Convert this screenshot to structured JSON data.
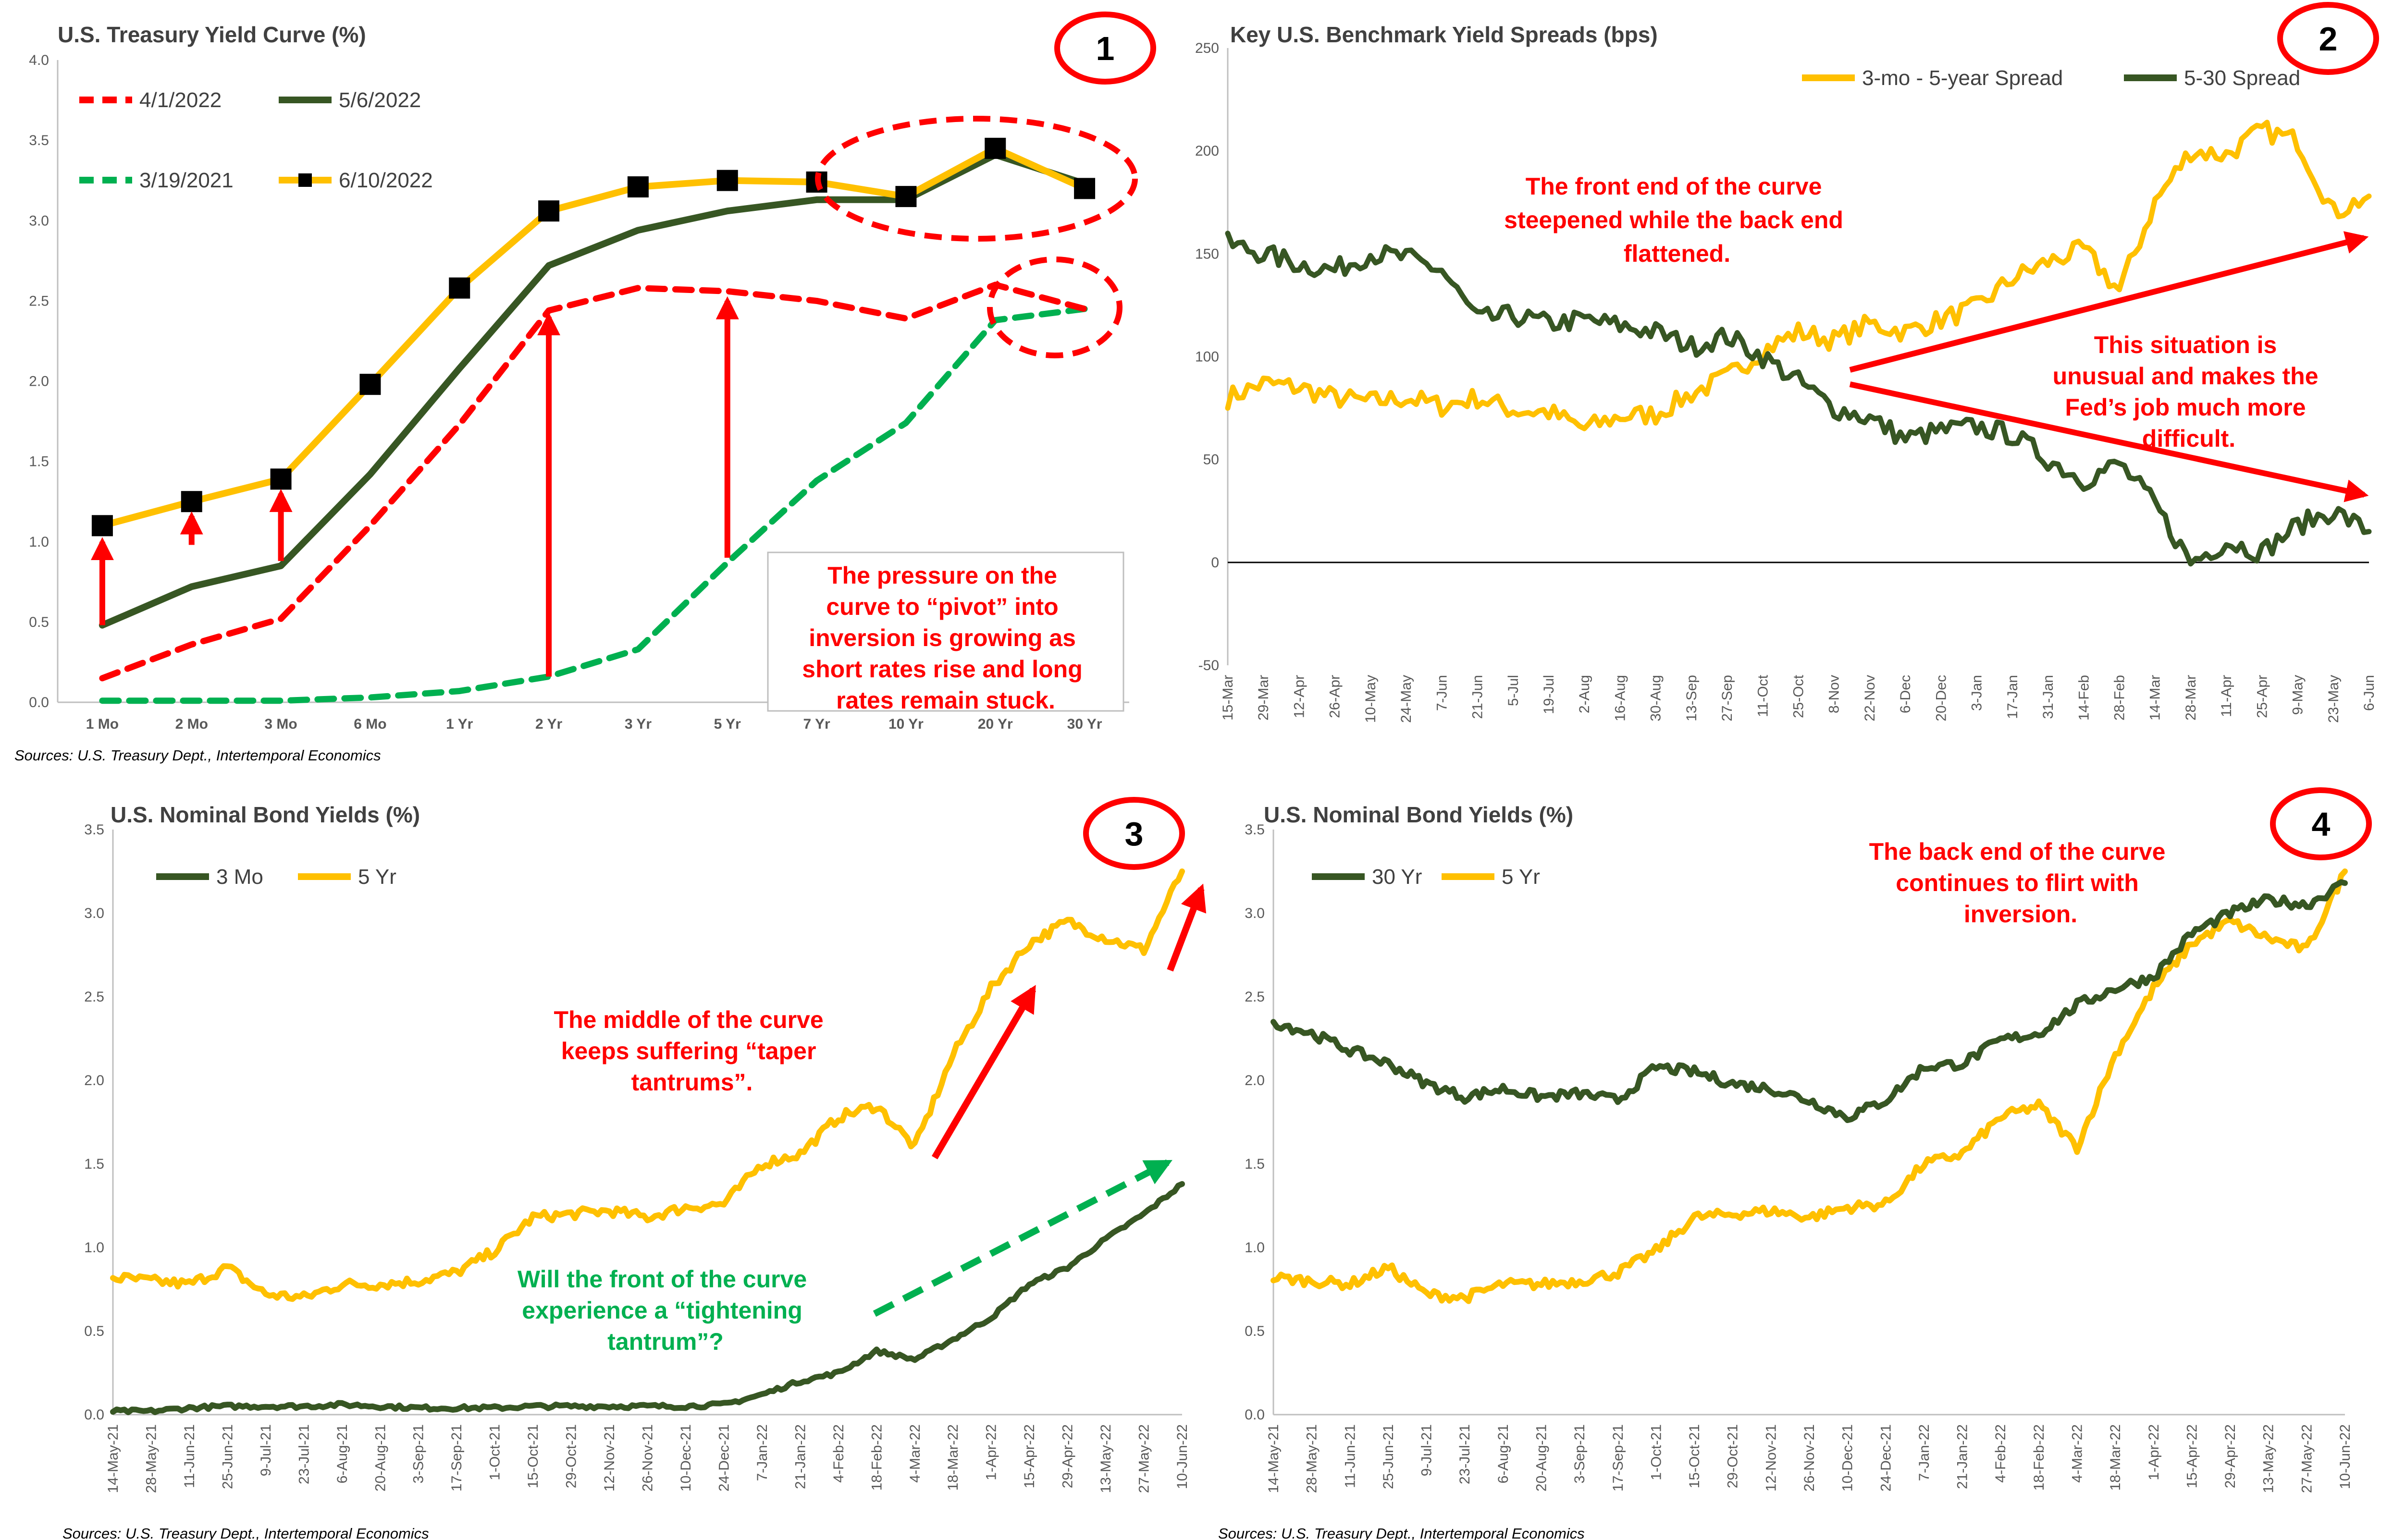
{
  "colors": {
    "gold": "#ffc000",
    "dark_green": "#375623",
    "red": "#ff0000",
    "green": "#00b050",
    "black": "#000000"
  },
  "panel1": {
    "badge": "1",
    "source": "Sources: U.S. Treasury Dept., Intertemporal Economics",
    "annotation": [
      "The pressure on the",
      "curve to “pivot” into",
      "inversion is growing as",
      "short rates rise and long",
      "rates remain stuck."
    ]
  },
  "panel2": {
    "badge": "2",
    "annotation_top": [
      "The front end of the curve",
      "steepened while the back end",
      "flattened."
    ],
    "annotation_right": [
      "This situation is",
      "unusual and makes the",
      "Fed’s job much more",
      "difficult."
    ]
  },
  "panel3": {
    "badge": "3",
    "source": "Sources: U.S. Treasury Dept., Intertemporal Economics",
    "annotation_mid": [
      "The middle of the curve",
      "keeps suffering “taper",
      "tantrums”."
    ],
    "annotation_front": [
      "Will the front of the curve",
      "experience a “tightening",
      "tantrum”?"
    ]
  },
  "panel4": {
    "badge": "4",
    "source": "Sources: U.S. Treasury Dept., Intertemporal Economics",
    "annotation": [
      "The back end of the curve",
      "continues to flirt with",
      "inversion."
    ]
  },
  "chart_data": [
    {
      "type": "line",
      "title": "U.S. Treasury Yield Curve (%)",
      "categories": [
        "1 Mo",
        "2 Mo",
        "3 Mo",
        "6 Mo",
        "1 Yr",
        "2 Yr",
        "3 Yr",
        "5 Yr",
        "7 Yr",
        "10 Yr",
        "20 Yr",
        "30 Yr"
      ],
      "ylim": [
        0,
        4
      ],
      "yticks": [
        "0.0",
        "0.5",
        "1.0",
        "1.5",
        "2.0",
        "2.5",
        "3.0",
        "3.5",
        "4.0"
      ],
      "legend": "top-left",
      "series": [
        {
          "name": "4/1/2022",
          "color": "#ff0000",
          "style": "dashed",
          "values": [
            0.15,
            0.36,
            0.52,
            1.1,
            1.73,
            2.44,
            2.58,
            2.56,
            2.5,
            2.39,
            2.6,
            2.45
          ]
        },
        {
          "name": "5/6/2022",
          "color": "#375623",
          "style": "solid",
          "values": [
            0.48,
            0.72,
            0.85,
            1.42,
            2.08,
            2.72,
            2.94,
            3.06,
            3.13,
            3.13,
            3.41,
            3.23
          ]
        },
        {
          "name": "3/19/2021",
          "color": "#00b050",
          "style": "dashed",
          "values": [
            0.01,
            0.01,
            0.01,
            0.03,
            0.07,
            0.16,
            0.33,
            0.87,
            1.38,
            1.74,
            2.38,
            2.45
          ]
        },
        {
          "name": "6/10/2022",
          "color": "#ffc000",
          "style": "solid-markers",
          "values": [
            1.1,
            1.25,
            1.39,
            1.98,
            2.58,
            3.06,
            3.21,
            3.25,
            3.24,
            3.15,
            3.45,
            3.2
          ]
        }
      ]
    },
    {
      "type": "line",
      "title": "Key U.S. Benchmark Yield Spreads (bps)",
      "ylim": [
        -50,
        250
      ],
      "yticks": [
        "-50",
        "0",
        "50",
        "100",
        "150",
        "200",
        "250"
      ],
      "legend": "top-right",
      "x": [
        "15-Mar",
        "29-Mar",
        "12-Apr",
        "26-Apr",
        "10-May",
        "24-May",
        "7-Jun",
        "21-Jun",
        "5-Jul",
        "19-Jul",
        "2-Aug",
        "16-Aug",
        "30-Aug",
        "13-Sep",
        "27-Sep",
        "11-Oct",
        "25-Oct",
        "8-Nov",
        "22-Nov",
        "6-Dec",
        "20-Dec",
        "3-Jan",
        "17-Jan",
        "31-Jan",
        "14-Feb",
        "28-Feb",
        "14-Mar",
        "28-Mar",
        "11-Apr",
        "25-Apr",
        "9-May",
        "23-May",
        "6-Jun"
      ],
      "series": [
        {
          "name": "3-mo - 5-year Spread",
          "color": "#ffc000",
          "values": [
            80,
            87,
            85,
            80,
            78,
            80,
            76,
            80,
            74,
            73,
            65,
            71,
            72,
            82,
            90,
            103,
            112,
            108,
            116,
            112,
            118,
            124,
            138,
            146,
            152,
            132,
            175,
            200,
            198,
            210,
            205,
            170,
            178
          ]
        },
        {
          "name": "5-30 Spread",
          "color": "#375623",
          "values": [
            155,
            150,
            145,
            142,
            150,
            148,
            142,
            118,
            120,
            116,
            118,
            115,
            112,
            105,
            110,
            100,
            88,
            75,
            70,
            60,
            64,
            66,
            62,
            50,
            40,
            48,
            28,
            0,
            10,
            5,
            18,
            25,
            15
          ]
        }
      ]
    },
    {
      "type": "line",
      "title": "U.S. Nominal Bond Yields (%)",
      "ylim": [
        0,
        3.5
      ],
      "yticks": [
        "0.0",
        "0.5",
        "1.0",
        "1.5",
        "2.0",
        "2.5",
        "3.0",
        "3.5"
      ],
      "legend": "top-left",
      "x": [
        "14-May-21",
        "28-May-21",
        "11-Jun-21",
        "25-Jun-21",
        "9-Jul-21",
        "23-Jul-21",
        "6-Aug-21",
        "20-Aug-21",
        "3-Sep-21",
        "17-Sep-21",
        "1-Oct-21",
        "15-Oct-21",
        "29-Oct-21",
        "12-Nov-21",
        "26-Nov-21",
        "10-Dec-21",
        "24-Dec-21",
        "7-Jan-22",
        "21-Jan-22",
        "4-Feb-22",
        "18-Feb-22",
        "4-Mar-22",
        "18-Mar-22",
        "1-Apr-22",
        "15-Apr-22",
        "29-Apr-22",
        "13-May-22",
        "27-May-22",
        "10-Jun-22"
      ],
      "series": [
        {
          "name": "3 Mo",
          "color": "#375623",
          "values": [
            0.02,
            0.02,
            0.04,
            0.05,
            0.05,
            0.05,
            0.06,
            0.05,
            0.04,
            0.04,
            0.04,
            0.05,
            0.05,
            0.05,
            0.05,
            0.05,
            0.06,
            0.12,
            0.2,
            0.25,
            0.38,
            0.33,
            0.45,
            0.58,
            0.78,
            0.88,
            1.05,
            1.2,
            1.38
          ]
        },
        {
          "name": "5 Yr",
          "color": "#ffc000",
          "values": [
            0.82,
            0.8,
            0.78,
            0.88,
            0.72,
            0.7,
            0.78,
            0.78,
            0.8,
            0.85,
            0.98,
            1.18,
            1.2,
            1.22,
            1.18,
            1.24,
            1.26,
            1.5,
            1.56,
            1.78,
            1.85,
            1.6,
            2.15,
            2.55,
            2.82,
            2.95,
            2.85,
            2.78,
            3.25
          ]
        }
      ]
    },
    {
      "type": "line",
      "title": "U.S. Nominal Bond Yields (%)",
      "ylim": [
        0,
        3.5
      ],
      "yticks": [
        "0.0",
        "0.5",
        "1.0",
        "1.5",
        "2.0",
        "2.5",
        "3.0",
        "3.5"
      ],
      "legend": "top-left",
      "x": [
        "14-May-21",
        "28-May-21",
        "11-Jun-21",
        "25-Jun-21",
        "9-Jul-21",
        "23-Jul-21",
        "6-Aug-21",
        "20-Aug-21",
        "3-Sep-21",
        "17-Sep-21",
        "1-Oct-21",
        "15-Oct-21",
        "29-Oct-21",
        "12-Nov-21",
        "26-Nov-21",
        "10-Dec-21",
        "24-Dec-21",
        "7-Jan-22",
        "21-Jan-22",
        "4-Feb-22",
        "18-Feb-22",
        "4-Mar-22",
        "18-Mar-22",
        "1-Apr-22",
        "15-Apr-22",
        "29-Apr-22",
        "13-May-22",
        "27-May-22",
        "10-Jun-22"
      ],
      "series": [
        {
          "name": "30 Yr",
          "color": "#375623",
          "values": [
            2.35,
            2.28,
            2.18,
            2.1,
            1.98,
            1.9,
            1.95,
            1.9,
            1.92,
            1.88,
            2.08,
            2.05,
            1.98,
            1.95,
            1.88,
            1.78,
            1.88,
            2.08,
            2.1,
            2.24,
            2.28,
            2.45,
            2.55,
            2.62,
            2.88,
            3.0,
            3.08,
            3.05,
            3.18
          ]
        },
        {
          "name": "5 Yr",
          "color": "#ffc000",
          "values": [
            0.82,
            0.8,
            0.78,
            0.88,
            0.72,
            0.7,
            0.78,
            0.78,
            0.8,
            0.85,
            0.98,
            1.18,
            1.2,
            1.22,
            1.18,
            1.24,
            1.26,
            1.5,
            1.56,
            1.78,
            1.85,
            1.6,
            2.15,
            2.55,
            2.82,
            2.95,
            2.85,
            2.78,
            3.25
          ]
        }
      ]
    }
  ]
}
